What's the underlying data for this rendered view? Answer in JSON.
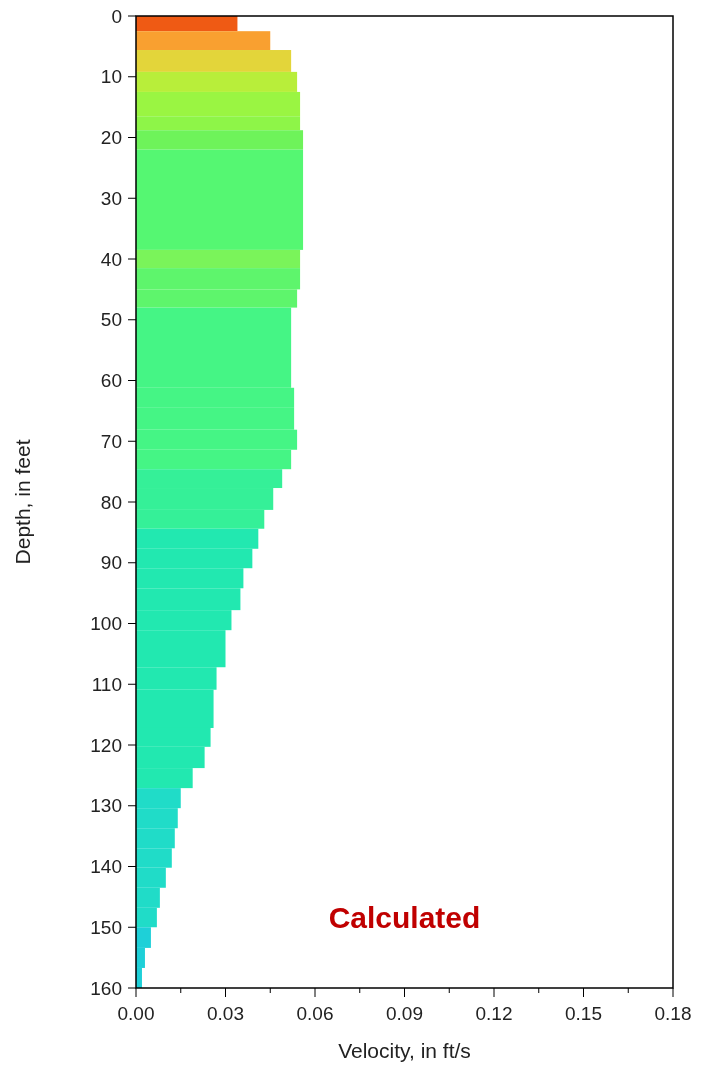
{
  "chart_data": {
    "type": "bar",
    "orientation": "horizontal",
    "x": [
      1.25,
      4.05,
      7.4,
      10.85,
      14.5,
      17.65,
      20.4,
      30.25,
      40,
      43.25,
      46.5,
      54.6,
      62.85,
      66.3,
      69.75,
      73,
      76.15,
      79.5,
      82.85,
      86.05,
      89.3,
      92.55,
      96,
      99.45,
      104.15,
      109.05,
      114.05,
      118.75,
      122.05,
      125.45,
      128.75,
      132.05,
      135.35,
      138.6,
      141.85,
      145.15,
      148.4,
      151.7,
      155.05,
      158.35
    ],
    "values": [
      0.034,
      0.045,
      0.052,
      0.054,
      0.055,
      0.055,
      0.056,
      0.056,
      0.055,
      0.055,
      0.054,
      0.052,
      0.053,
      0.053,
      0.054,
      0.052,
      0.049,
      0.046,
      0.043,
      0.041,
      0.039,
      0.036,
      0.035,
      0.032,
      0.03,
      0.027,
      0.026,
      0.025,
      0.023,
      0.019,
      0.015,
      0.014,
      0.013,
      0.012,
      0.01,
      0.008,
      0.007,
      0.005,
      0.003,
      0.002
    ],
    "colors": [
      "#ef5a14",
      "#f9a030",
      "#e3d53a",
      "#b8ee3a",
      "#9af542",
      "#8ef548",
      "#6ef35a",
      "#55f772",
      "#7af45a",
      "#5ef56c",
      "#5ef56c",
      "#45f585",
      "#45f585",
      "#45f585",
      "#45f585",
      "#45f585",
      "#35f098",
      "#35f098",
      "#35f098",
      "#22e8b0",
      "#22e8b0",
      "#22e8b0",
      "#22e8b0",
      "#22e8b0",
      "#22e8b0",
      "#22e8b0",
      "#22e8b0",
      "#22e8b0",
      "#22e8b0",
      "#22e8b0",
      "#20dcc8",
      "#20dcc8",
      "#20dcc8",
      "#20dcc8",
      "#20dcc8",
      "#20dcc8",
      "#20dcc8",
      "#1ed0d8",
      "#1ed0d8",
      "#1ed0d8"
    ],
    "xlim": [
      0,
      0.18
    ],
    "xticks": [
      {
        "value": 0,
        "label": "0.00"
      },
      {
        "value": 0.015,
        "label": null
      },
      {
        "value": 0.03,
        "label": "0.03"
      },
      {
        "value": 0.045,
        "label": null
      },
      {
        "value": 0.06,
        "label": "0.06"
      },
      {
        "value": 0.075,
        "label": null
      },
      {
        "value": 0.09,
        "label": "0.09"
      },
      {
        "value": 0.105,
        "label": null
      },
      {
        "value": 0.12,
        "label": "0.12"
      },
      {
        "value": 0.135,
        "label": null
      },
      {
        "value": 0.15,
        "label": "0.15"
      },
      {
        "value": 0.165,
        "label": null
      },
      {
        "value": 0.18,
        "label": "0.18"
      }
    ],
    "ylim": [
      160,
      0
    ],
    "yticks": [
      0,
      10,
      20,
      30,
      40,
      50,
      60,
      70,
      80,
      90,
      100,
      110,
      120,
      130,
      140,
      150,
      160
    ],
    "xlabel": "Velocity, in ft/s",
    "ylabel": "Depth, in feet",
    "annotations": [
      "Calculated"
    ]
  }
}
